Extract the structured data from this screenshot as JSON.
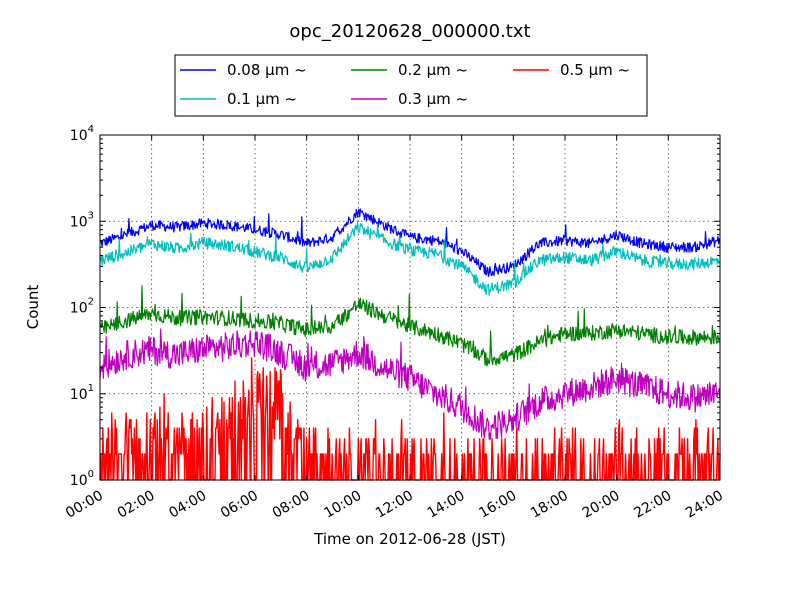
{
  "chart_data": {
    "type": "line",
    "title": "opc_20120628_000000.txt",
    "xlabel": "Time on 2012-06-28 (JST)",
    "ylabel": "Count",
    "y_scale": "log",
    "ylim": [
      1,
      10000
    ],
    "xlim": [
      "00:00",
      "24:00"
    ],
    "x_ticks": [
      "00:00",
      "02:00",
      "04:00",
      "06:00",
      "08:00",
      "10:00",
      "12:00",
      "14:00",
      "16:00",
      "18:00",
      "20:00",
      "22:00",
      "24:00"
    ],
    "y_ticks": [
      {
        "base": "10",
        "exp": "0"
      },
      {
        "base": "10",
        "exp": "1"
      },
      {
        "base": "10",
        "exp": "2"
      },
      {
        "base": "10",
        "exp": "3"
      },
      {
        "base": "10",
        "exp": "4"
      }
    ],
    "grid": true,
    "legend_position": "top-center",
    "x_hours": [
      0,
      1,
      2,
      3,
      4,
      5,
      6,
      7,
      8,
      9,
      10,
      11,
      12,
      13,
      14,
      15,
      16,
      17,
      18,
      19,
      20,
      21,
      22,
      23,
      24
    ],
    "series": [
      {
        "name": "0.08 μm ~",
        "color": "#0000ff",
        "values": [
          550,
          700,
          900,
          850,
          950,
          900,
          800,
          700,
          550,
          650,
          1300,
          900,
          650,
          600,
          450,
          260,
          300,
          550,
          600,
          550,
          700,
          550,
          500,
          500,
          600
        ]
      },
      {
        "name": "0.1 μm ~",
        "color": "#00bfbf",
        "values": [
          350,
          430,
          550,
          480,
          560,
          520,
          440,
          380,
          280,
          380,
          850,
          600,
          450,
          420,
          300,
          160,
          190,
          350,
          380,
          350,
          450,
          350,
          320,
          320,
          350
        ]
      },
      {
        "name": "0.2 μm ~",
        "color": "#008000",
        "values": [
          55,
          70,
          85,
          75,
          78,
          75,
          70,
          65,
          55,
          60,
          110,
          80,
          60,
          50,
          38,
          25,
          28,
          40,
          50,
          50,
          55,
          50,
          45,
          45,
          45
        ]
      },
      {
        "name": "0.3 μm ~",
        "color": "#bf00bf",
        "values": [
          20,
          28,
          32,
          28,
          33,
          35,
          40,
          30,
          20,
          22,
          30,
          20,
          15,
          10,
          7,
          4,
          5,
          8,
          10,
          12,
          15,
          12,
          10,
          9,
          10
        ]
      },
      {
        "name": "0.5 μm ~",
        "color": "#ff0000",
        "values": [
          2,
          2.5,
          2.5,
          2.5,
          3,
          4,
          10,
          8,
          2,
          1.5,
          2,
          1.5,
          1.5,
          1.5,
          1.3,
          1.2,
          1.3,
          1.5,
          1.5,
          1.5,
          1.8,
          1.5,
          1.5,
          1.5,
          1.5
        ]
      }
    ]
  }
}
